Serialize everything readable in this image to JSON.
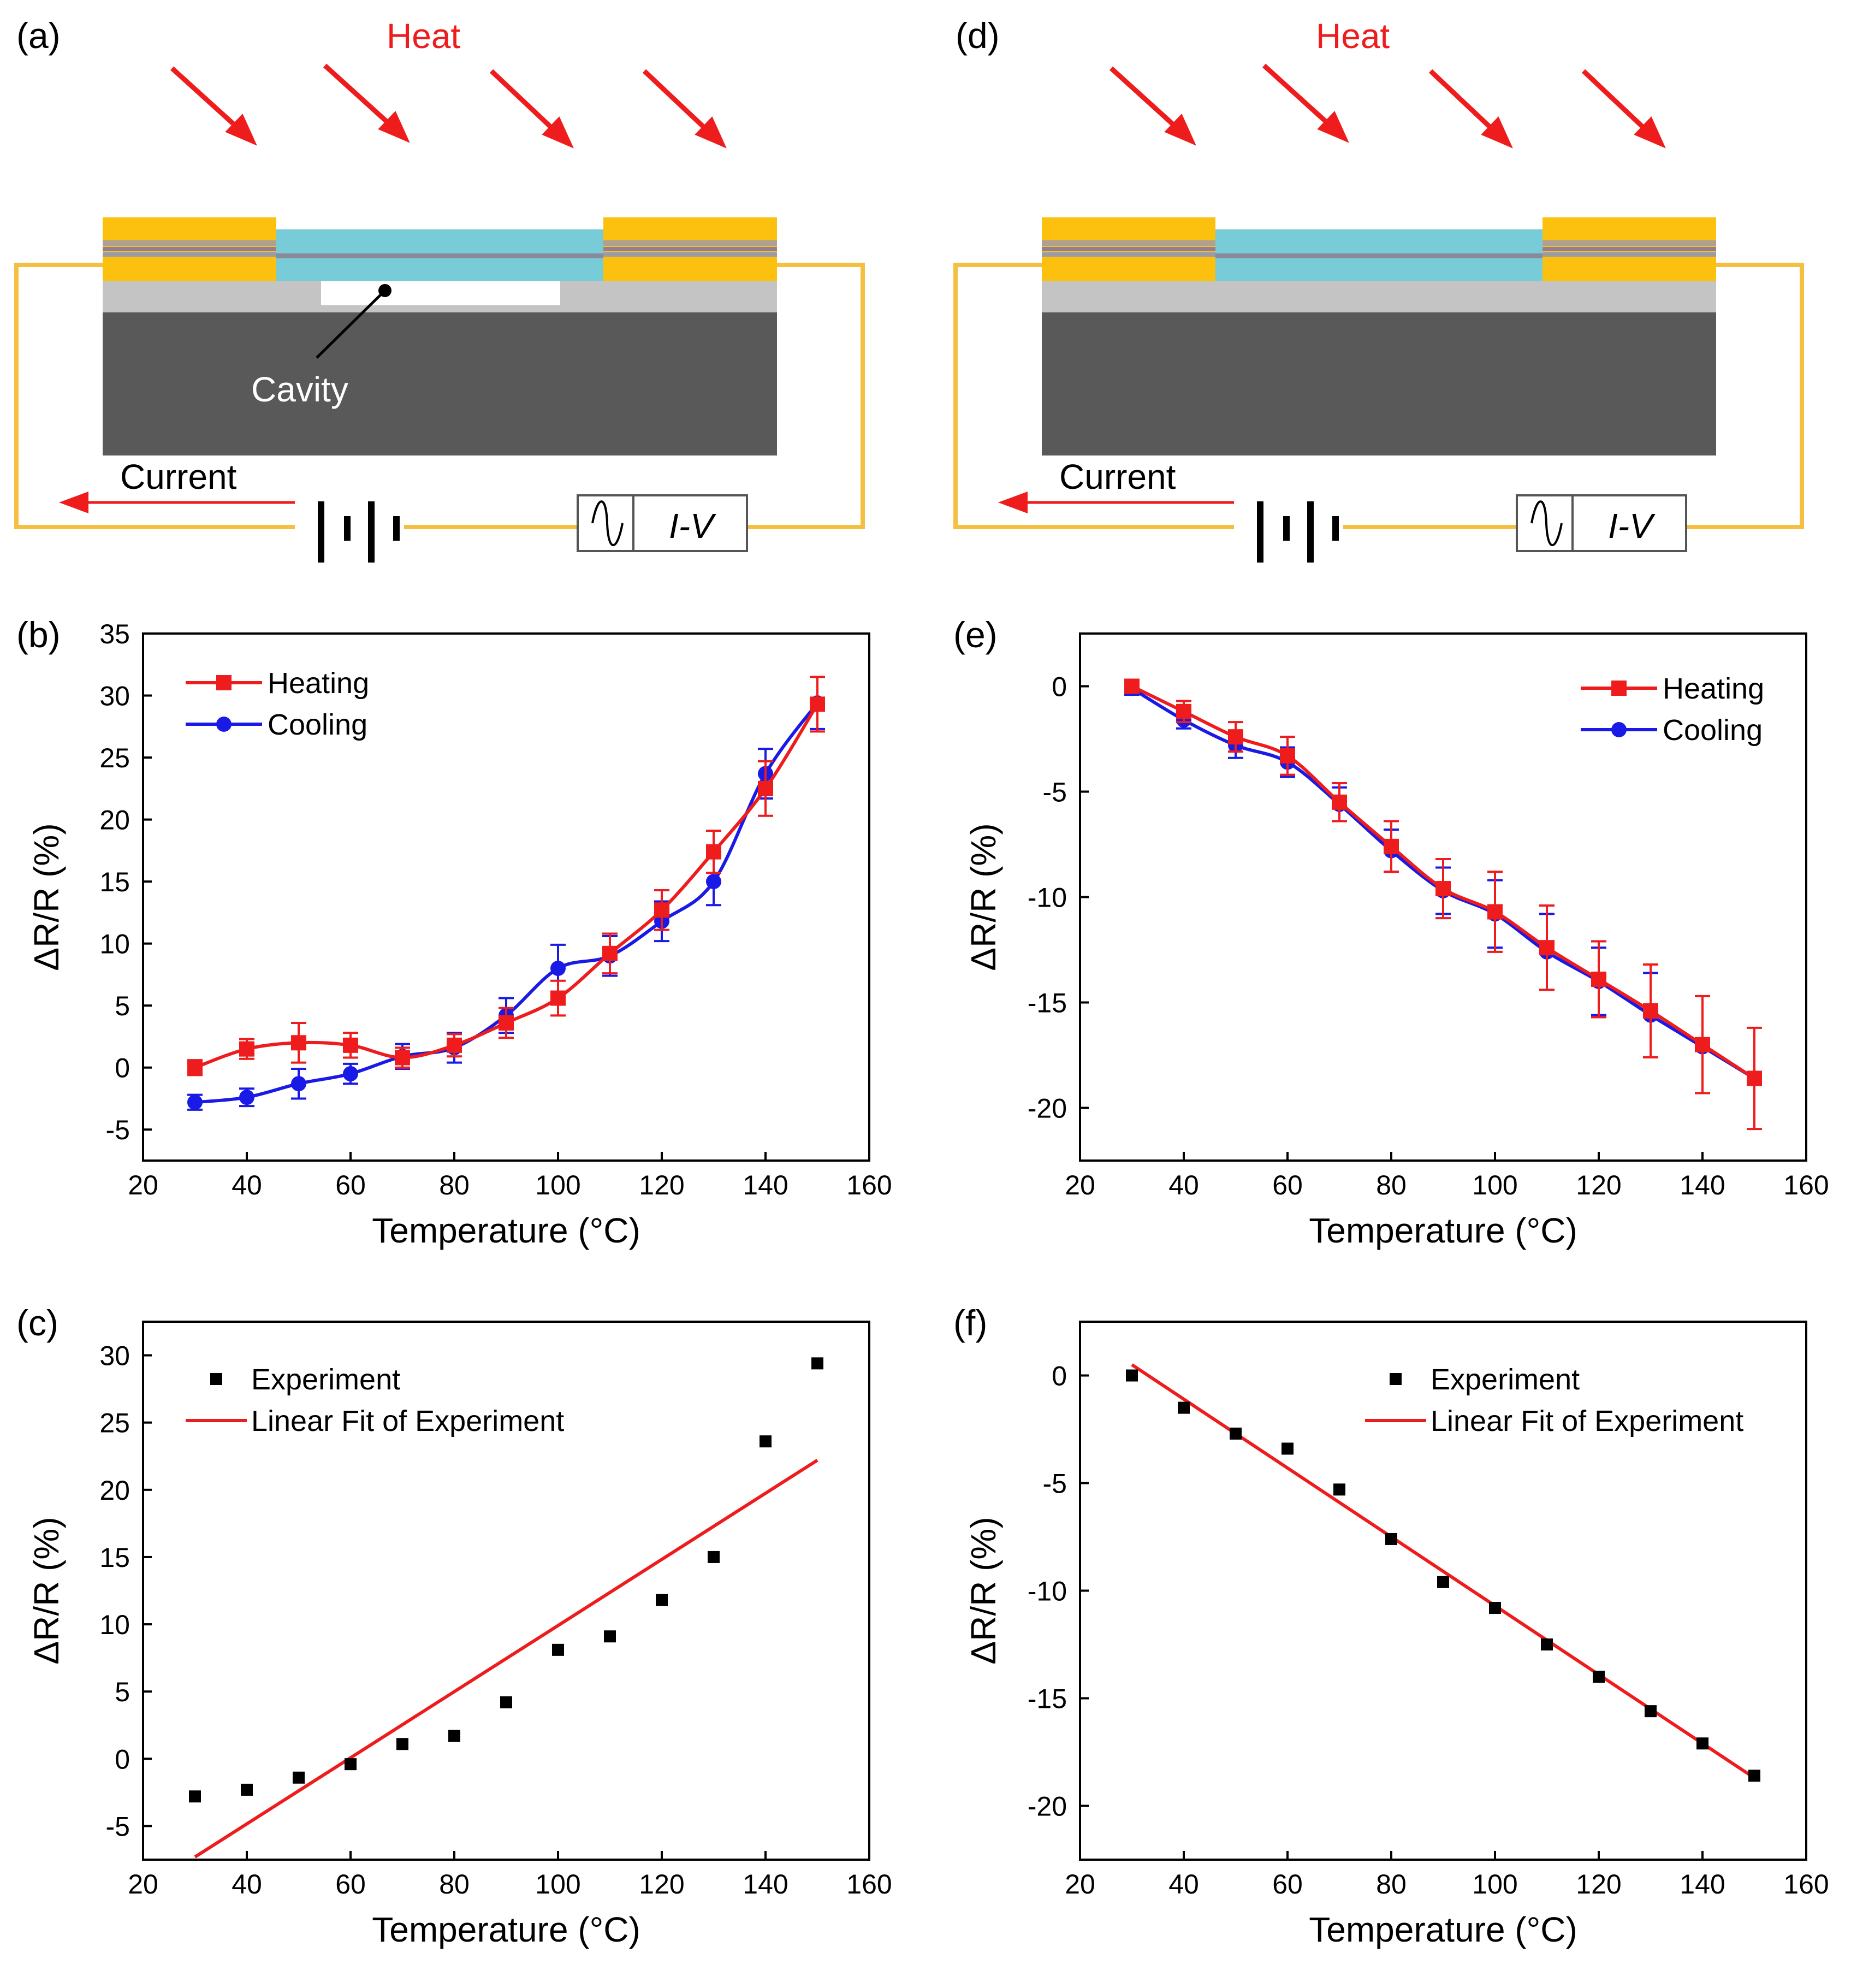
{
  "diagrams": [
    {
      "panel_label": "(a)",
      "heat_label": "Heat",
      "cavity_label": "Cavity",
      "current_label": "Current",
      "meter_label": "I-V",
      "has_cavity": true
    },
    {
      "panel_label": "(d)",
      "heat_label": "Heat",
      "current_label": "Current",
      "meter_label": "I-V",
      "has_cavity": false
    }
  ],
  "colors": {
    "heating": "#ee1c1c",
    "cooling": "#1a1ae6",
    "fit": "#ee1c1c",
    "experiment": "#000000",
    "electrode": "#fcc10e",
    "channel": "#78ccd8",
    "oxide": "#c4c4c4",
    "substrate": "#595959",
    "wire": "#f5c042",
    "heat_arrow": "#ee1c1c"
  },
  "chart_data": [
    {
      "id": "b",
      "panel_label": "(b)",
      "type": "line",
      "xlabel": "Temperature (°C)",
      "ylabel": "ΔR/R (%)",
      "xlim": [
        20,
        160
      ],
      "ylim": [
        -7.5,
        35
      ],
      "xticks": [
        20,
        40,
        60,
        80,
        100,
        120,
        140,
        160
      ],
      "yticks": [
        -5,
        0,
        5,
        10,
        15,
        20,
        25,
        30,
        35
      ],
      "legend_position": "top-left",
      "x": [
        30,
        40,
        50,
        60,
        70,
        80,
        90,
        100,
        110,
        120,
        130,
        140,
        150
      ],
      "series": [
        {
          "name": "Heating",
          "marker": "square",
          "color_key": "heating",
          "values": [
            0,
            1.5,
            2.0,
            1.8,
            0.8,
            1.8,
            3.6,
            5.6,
            9.2,
            12.7,
            17.4,
            22.5,
            29.3
          ],
          "errors": [
            0.6,
            0.8,
            1.6,
            1.0,
            0.8,
            0.9,
            1.2,
            1.4,
            1.6,
            1.6,
            1.7,
            2.2,
            2.2
          ]
        },
        {
          "name": "Cooling",
          "marker": "circle",
          "color_key": "cooling",
          "values": [
            -2.8,
            -2.4,
            -1.3,
            -0.5,
            0.9,
            1.6,
            4.2,
            8.0,
            9.0,
            11.8,
            15.0,
            23.7,
            29.4
          ],
          "errors": [
            0.6,
            0.7,
            1.2,
            0.8,
            1.0,
            1.2,
            1.4,
            1.9,
            1.6,
            1.6,
            1.9,
            2.0,
            2.1
          ]
        }
      ]
    },
    {
      "id": "c",
      "panel_label": "(c)",
      "type": "scatter",
      "xlabel": "Temperature (°C)",
      "ylabel": "ΔR/R (%)",
      "xlim": [
        20,
        160
      ],
      "ylim": [
        -7.5,
        32.5
      ],
      "xticks": [
        20,
        40,
        60,
        80,
        100,
        120,
        140,
        160
      ],
      "yticks": [
        -5,
        0,
        5,
        10,
        15,
        20,
        25,
        30
      ],
      "legend_position": "top-left",
      "x": [
        30,
        40,
        50,
        60,
        70,
        80,
        90,
        100,
        110,
        120,
        130,
        140,
        150
      ],
      "series": [
        {
          "name": "Experiment",
          "marker": "square",
          "color_key": "experiment",
          "values": [
            -2.8,
            -2.3,
            -1.4,
            -0.4,
            1.1,
            1.7,
            4.2,
            8.1,
            9.1,
            11.8,
            15.0,
            23.6,
            29.4
          ]
        }
      ],
      "fit": {
        "name": "Linear Fit of Experiment",
        "color_key": "fit",
        "x": [
          30,
          150
        ],
        "y": [
          -7.3,
          22.2
        ]
      }
    },
    {
      "id": "e",
      "panel_label": "(e)",
      "type": "line",
      "xlabel": "Temperature (°C)",
      "ylabel": "ΔR/R (%)",
      "xlim": [
        20,
        160
      ],
      "ylim": [
        -22.5,
        2.5
      ],
      "xticks": [
        20,
        40,
        60,
        80,
        100,
        120,
        140,
        160
      ],
      "yticks": [
        -20,
        -15,
        -10,
        -5,
        0
      ],
      "legend_position": "top-right",
      "x": [
        30,
        40,
        50,
        60,
        70,
        80,
        90,
        100,
        110,
        120,
        130,
        140,
        150
      ],
      "series": [
        {
          "name": "Heating",
          "marker": "square",
          "color_key": "heating",
          "values": [
            0,
            -1.2,
            -2.4,
            -3.3,
            -5.5,
            -7.6,
            -9.6,
            -10.7,
            -12.4,
            -13.9,
            -15.4,
            -17.0,
            -18.6
          ],
          "errors": [
            0.3,
            0.5,
            0.7,
            0.9,
            0.9,
            1.2,
            1.4,
            1.9,
            2.0,
            1.8,
            2.2,
            2.3,
            2.4
          ]
        },
        {
          "name": "Cooling",
          "marker": "circle",
          "color_key": "cooling",
          "values": [
            -0.1,
            -1.6,
            -2.8,
            -3.6,
            -5.6,
            -7.8,
            -9.7,
            -10.8,
            -12.6,
            -14.0,
            -15.6,
            -17.1,
            -18.6
          ],
          "errors": [
            0.3,
            0.4,
            0.6,
            0.7,
            0.8,
            1.0,
            1.1,
            1.6,
            1.8,
            1.6,
            2.0,
            0,
            0
          ]
        }
      ]
    },
    {
      "id": "f",
      "panel_label": "(f)",
      "type": "scatter",
      "xlabel": "Temperature (°C)",
      "ylabel": "ΔR/R (%)",
      "xlim": [
        20,
        160
      ],
      "ylim": [
        -22.5,
        2.5
      ],
      "xticks": [
        20,
        40,
        60,
        80,
        100,
        120,
        140,
        160
      ],
      "yticks": [
        -20,
        -15,
        -10,
        -5,
        0
      ],
      "legend_position": "top-right",
      "x": [
        30,
        40,
        50,
        60,
        70,
        80,
        90,
        100,
        110,
        120,
        130,
        140,
        150
      ],
      "series": [
        {
          "name": "Experiment",
          "marker": "square",
          "color_key": "experiment",
          "values": [
            0,
            -1.5,
            -2.7,
            -3.4,
            -5.3,
            -7.6,
            -9.6,
            -10.8,
            -12.5,
            -14.0,
            -15.6,
            -17.1,
            -18.6
          ]
        }
      ],
      "fit": {
        "name": "Linear Fit of Experiment",
        "color_key": "fit",
        "x": [
          30,
          150
        ],
        "y": [
          0.5,
          -18.7
        ]
      }
    }
  ]
}
